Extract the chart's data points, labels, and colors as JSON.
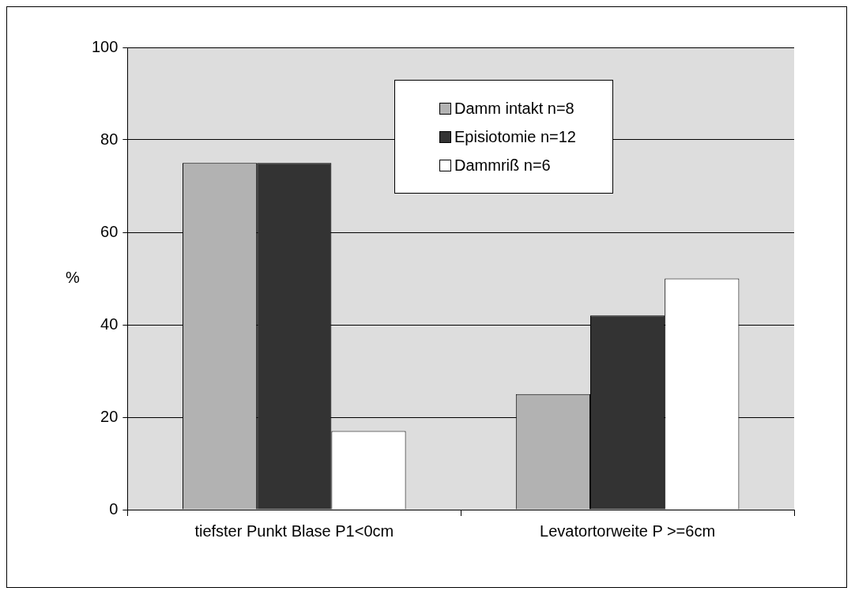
{
  "chart_data": {
    "type": "bar",
    "categories": [
      "tiefster Punkt Blase P1<0cm",
      "Levatortorweite P >=6cm"
    ],
    "series": [
      {
        "name": "Damm intakt n=8",
        "color": "#b2b2b2",
        "values": [
          75,
          25
        ]
      },
      {
        "name": "Episiotomie n=12",
        "color": "#333333",
        "values": [
          75,
          42
        ]
      },
      {
        "name": "Dammriß n=6",
        "color": "#ffffff",
        "values": [
          17,
          50
        ]
      }
    ],
    "ylabel": "%",
    "ylim": [
      0,
      100
    ],
    "yticks": [
      0,
      20,
      40,
      60,
      80,
      100
    ],
    "grid": "y",
    "legend": "top right"
  }
}
